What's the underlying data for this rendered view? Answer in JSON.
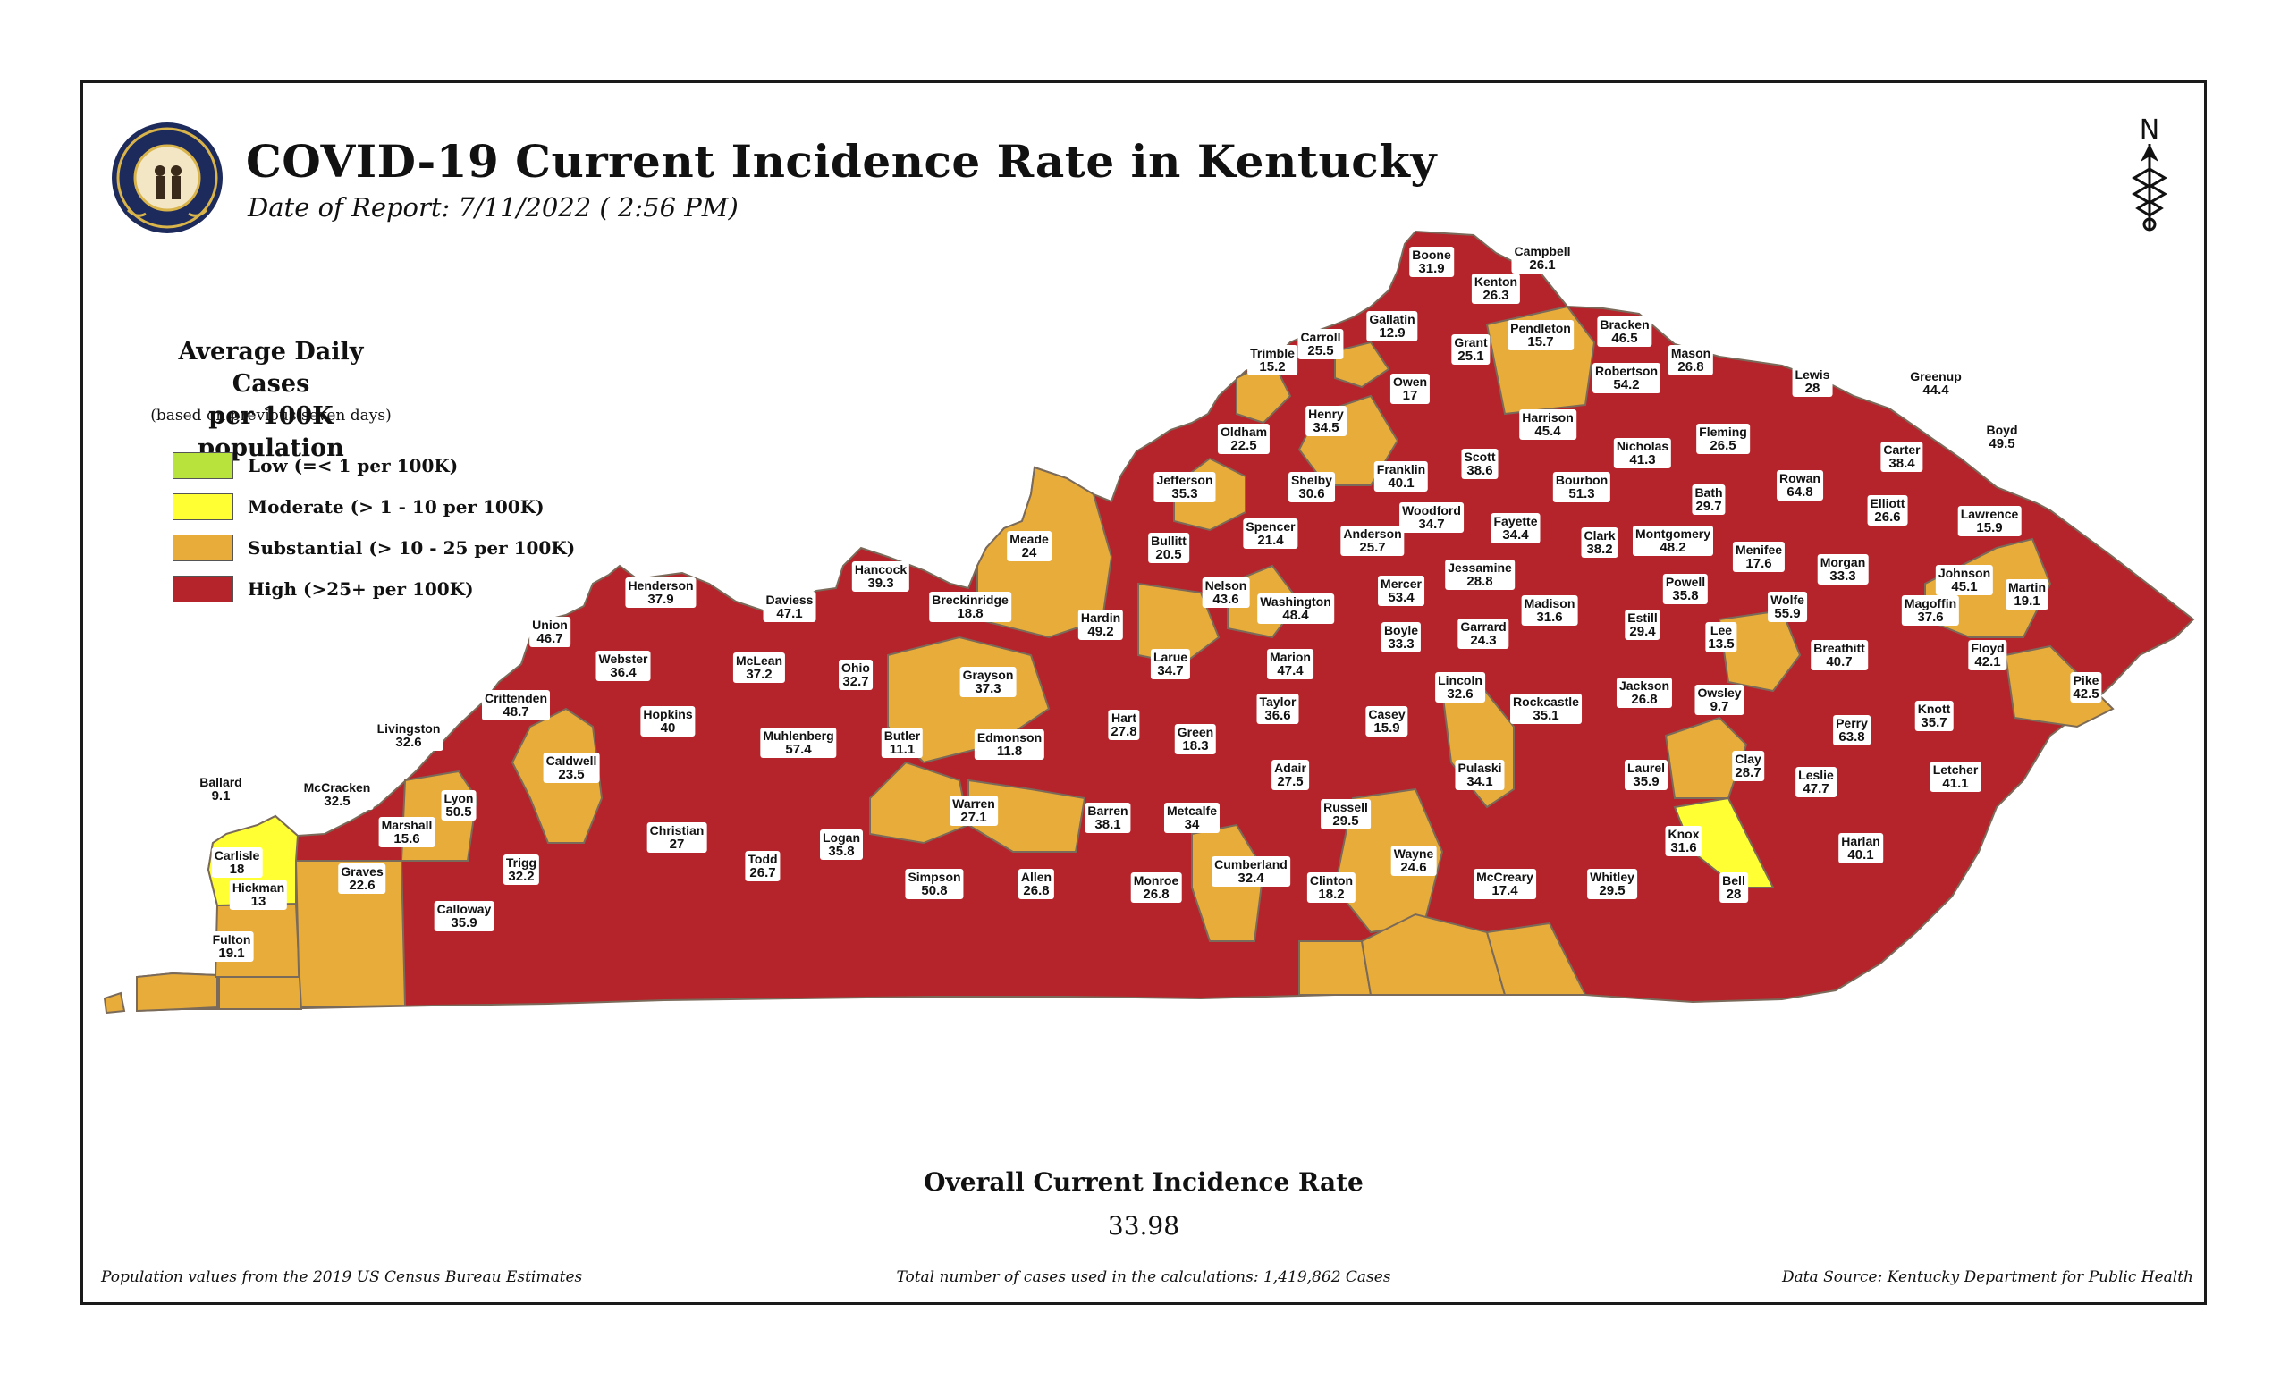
{
  "title": "COVID-19 Current Incidence Rate in Kentucky",
  "subtitle": "Date of Report: 7/11/2022 ( 2:56 PM)",
  "seal_text": "COMMONWEALTH OF KENTUCKY",
  "north_label": "N",
  "legend": {
    "title_line1": "Average Daily Cases",
    "title_line2": "per 100K population",
    "note": "(based on previous seven days)",
    "items": [
      {
        "label": "Low (=< 1 per 100K)",
        "color": "#b8e23c"
      },
      {
        "label": "Moderate (> 1 - 10 per 100K)",
        "color": "#ffff33"
      },
      {
        "label": "Substantial (> 10 - 25 per 100K)",
        "color": "#e8ac3a"
      },
      {
        "label": "High (>25+ per 100K)",
        "color": "#b5242a"
      }
    ]
  },
  "counties": [
    {
      "name": "Boone",
      "value": "31.9",
      "level": "high"
    },
    {
      "name": "Campbell",
      "value": "26.1",
      "level": "high"
    },
    {
      "name": "Kenton",
      "value": "26.3",
      "level": "high"
    },
    {
      "name": "Gallatin",
      "value": "12.9",
      "level": "substantial"
    },
    {
      "name": "Pendleton",
      "value": "15.7",
      "level": "substantial"
    },
    {
      "name": "Bracken",
      "value": "46.5",
      "level": "high"
    },
    {
      "name": "Carroll",
      "value": "25.5",
      "level": "high"
    },
    {
      "name": "Grant",
      "value": "25.1",
      "level": "high"
    },
    {
      "name": "Trimble",
      "value": "15.2",
      "level": "substantial"
    },
    {
      "name": "Mason",
      "value": "26.8",
      "level": "high"
    },
    {
      "name": "Owen",
      "value": "17",
      "level": "substantial"
    },
    {
      "name": "Robertson",
      "value": "54.2",
      "level": "high"
    },
    {
      "name": "Lewis",
      "value": "28",
      "level": "high"
    },
    {
      "name": "Greenup",
      "value": "44.4",
      "level": "high"
    },
    {
      "name": "Henry",
      "value": "34.5",
      "level": "high"
    },
    {
      "name": "Harrison",
      "value": "45.4",
      "level": "high"
    },
    {
      "name": "Oldham",
      "value": "22.5",
      "level": "substantial"
    },
    {
      "name": "Fleming",
      "value": "26.5",
      "level": "high"
    },
    {
      "name": "Boyd",
      "value": "49.5",
      "level": "high"
    },
    {
      "name": "Nicholas",
      "value": "41.3",
      "level": "high"
    },
    {
      "name": "Carter",
      "value": "38.4",
      "level": "high"
    },
    {
      "name": "Scott",
      "value": "38.6",
      "level": "high"
    },
    {
      "name": "Franklin",
      "value": "40.1",
      "level": "high"
    },
    {
      "name": "Shelby",
      "value": "30.6",
      "level": "high"
    },
    {
      "name": "Jefferson",
      "value": "35.3",
      "level": "high"
    },
    {
      "name": "Bourbon",
      "value": "51.3",
      "level": "high"
    },
    {
      "name": "Rowan",
      "value": "64.8",
      "level": "high"
    },
    {
      "name": "Bath",
      "value": "29.7",
      "level": "high"
    },
    {
      "name": "Elliott",
      "value": "26.6",
      "level": "high"
    },
    {
      "name": "Woodford",
      "value": "34.7",
      "level": "high"
    },
    {
      "name": "Lawrence",
      "value": "15.9",
      "level": "substantial"
    },
    {
      "name": "Spencer",
      "value": "21.4",
      "level": "substantial"
    },
    {
      "name": "Fayette",
      "value": "34.4",
      "level": "high"
    },
    {
      "name": "Anderson",
      "value": "25.7",
      "level": "high"
    },
    {
      "name": "Clark",
      "value": "38.2",
      "level": "high"
    },
    {
      "name": "Montgomery",
      "value": "48.2",
      "level": "high"
    },
    {
      "name": "Meade",
      "value": "24",
      "level": "substantial"
    },
    {
      "name": "Bullitt",
      "value": "20.5",
      "level": "substantial"
    },
    {
      "name": "Menifee",
      "value": "17.6",
      "level": "substantial"
    },
    {
      "name": "Morgan",
      "value": "33.3",
      "level": "high"
    },
    {
      "name": "Jessamine",
      "value": "28.8",
      "level": "high"
    },
    {
      "name": "Johnson",
      "value": "45.1",
      "level": "high"
    },
    {
      "name": "Hancock",
      "value": "39.3",
      "level": "high"
    },
    {
      "name": "Powell",
      "value": "35.8",
      "level": "high"
    },
    {
      "name": "Henderson",
      "value": "37.9",
      "level": "high"
    },
    {
      "name": "Mercer",
      "value": "53.4",
      "level": "high"
    },
    {
      "name": "Nelson",
      "value": "43.6",
      "level": "high"
    },
    {
      "name": "Martin",
      "value": "19.1",
      "level": "substantial"
    },
    {
      "name": "Daviess",
      "value": "47.1",
      "level": "high"
    },
    {
      "name": "Breckinridge",
      "value": "18.8",
      "level": "substantial"
    },
    {
      "name": "Washington",
      "value": "48.4",
      "level": "high"
    },
    {
      "name": "Wolfe",
      "value": "55.9",
      "level": "high"
    },
    {
      "name": "Madison",
      "value": "31.6",
      "level": "high"
    },
    {
      "name": "Magoffin",
      "value": "37.6",
      "level": "high"
    },
    {
      "name": "Hardin",
      "value": "49.2",
      "level": "high"
    },
    {
      "name": "Estill",
      "value": "29.4",
      "level": "high"
    },
    {
      "name": "Union",
      "value": "46.7",
      "level": "high"
    },
    {
      "name": "Garrard",
      "value": "24.3",
      "level": "substantial"
    },
    {
      "name": "Boyle",
      "value": "33.3",
      "level": "high"
    },
    {
      "name": "Lee",
      "value": "13.5",
      "level": "substantial"
    },
    {
      "name": "Breathitt",
      "value": "40.7",
      "level": "high"
    },
    {
      "name": "Floyd",
      "value": "42.1",
      "level": "high"
    },
    {
      "name": "Webster",
      "value": "36.4",
      "level": "high"
    },
    {
      "name": "McLean",
      "value": "37.2",
      "level": "high"
    },
    {
      "name": "Larue",
      "value": "34.7",
      "level": "high"
    },
    {
      "name": "Marion",
      "value": "47.4",
      "level": "high"
    },
    {
      "name": "Ohio",
      "value": "32.7",
      "level": "high"
    },
    {
      "name": "Grayson",
      "value": "37.3",
      "level": "high"
    },
    {
      "name": "Lincoln",
      "value": "32.6",
      "level": "high"
    },
    {
      "name": "Jackson",
      "value": "26.8",
      "level": "high"
    },
    {
      "name": "Owsley",
      "value": "9.7",
      "level": "moderate"
    },
    {
      "name": "Pike",
      "value": "42.5",
      "level": "high"
    },
    {
      "name": "Crittenden",
      "value": "48.7",
      "level": "high"
    },
    {
      "name": "Taylor",
      "value": "36.6",
      "level": "high"
    },
    {
      "name": "Casey",
      "value": "15.9",
      "level": "substantial"
    },
    {
      "name": "Rockcastle",
      "value": "35.1",
      "level": "high"
    },
    {
      "name": "Knott",
      "value": "35.7",
      "level": "high"
    },
    {
      "name": "Hopkins",
      "value": "40",
      "level": "high"
    },
    {
      "name": "Hart",
      "value": "27.8",
      "level": "high"
    },
    {
      "name": "Perry",
      "value": "63.8",
      "level": "high"
    },
    {
      "name": "Livingston",
      "value": "32.6",
      "level": "high"
    },
    {
      "name": "Muhlenberg",
      "value": "57.4",
      "level": "high"
    },
    {
      "name": "Butler",
      "value": "11.1",
      "level": "substantial"
    },
    {
      "name": "Edmonson",
      "value": "11.8",
      "level": "substantial"
    },
    {
      "name": "Green",
      "value": "18.3",
      "level": "substantial"
    },
    {
      "name": "Caldwell",
      "value": "23.5",
      "level": "substantial"
    },
    {
      "name": "Clay",
      "value": "28.7",
      "level": "high"
    },
    {
      "name": "Ballard",
      "value": "9.1",
      "level": "moderate"
    },
    {
      "name": "Adair",
      "value": "27.5",
      "level": "high"
    },
    {
      "name": "Pulaski",
      "value": "34.1",
      "level": "high"
    },
    {
      "name": "Laurel",
      "value": "35.9",
      "level": "high"
    },
    {
      "name": "Leslie",
      "value": "47.7",
      "level": "high"
    },
    {
      "name": "Letcher",
      "value": "41.1",
      "level": "high"
    },
    {
      "name": "McCracken",
      "value": "32.5",
      "level": "high"
    },
    {
      "name": "Lyon",
      "value": "50.5",
      "level": "high"
    },
    {
      "name": "Marshall",
      "value": "15.6",
      "level": "substantial"
    },
    {
      "name": "Warren",
      "value": "27.1",
      "level": "high"
    },
    {
      "name": "Russell",
      "value": "29.5",
      "level": "high"
    },
    {
      "name": "Christian",
      "value": "27",
      "level": "high"
    },
    {
      "name": "Barren",
      "value": "38.1",
      "level": "high"
    },
    {
      "name": "Metcalfe",
      "value": "34",
      "level": "high"
    },
    {
      "name": "Logan",
      "value": "35.8",
      "level": "high"
    },
    {
      "name": "Knox",
      "value": "31.6",
      "level": "high"
    },
    {
      "name": "Carlisle",
      "value": "18",
      "level": "substantial"
    },
    {
      "name": "Harlan",
      "value": "40.1",
      "level": "high"
    },
    {
      "name": "Trigg",
      "value": "32.2",
      "level": "high"
    },
    {
      "name": "Todd",
      "value": "26.7",
      "level": "high"
    },
    {
      "name": "Wayne",
      "value": "24.6",
      "level": "substantial"
    },
    {
      "name": "Cumberland",
      "value": "32.4",
      "level": "high"
    },
    {
      "name": "Graves",
      "value": "22.6",
      "level": "substantial"
    },
    {
      "name": "Simpson",
      "value": "50.8",
      "level": "high"
    },
    {
      "name": "Allen",
      "value": "26.8",
      "level": "high"
    },
    {
      "name": "Monroe",
      "value": "26.8",
      "level": "high"
    },
    {
      "name": "Clinton",
      "value": "18.2",
      "level": "substantial"
    },
    {
      "name": "McCreary",
      "value": "17.4",
      "level": "substantial"
    },
    {
      "name": "Whitley",
      "value": "29.5",
      "level": "high"
    },
    {
      "name": "Bell",
      "value": "28",
      "level": "high"
    },
    {
      "name": "Hickman",
      "value": "13",
      "level": "substantial"
    },
    {
      "name": "Calloway",
      "value": "35.9",
      "level": "high"
    },
    {
      "name": "Fulton",
      "value": "19.1",
      "level": "substantial"
    }
  ],
  "overall": {
    "title": "Overall Current Incidence Rate",
    "value": "33.98"
  },
  "footer": {
    "left": "Population values from the 2019 US Census Bureau Estimates",
    "center": "Total number of cases used in the calculations: 1,419,862 Cases",
    "right": "Data Source: Kentucky Department for Public Health"
  },
  "colors": {
    "high": "#b5242a",
    "substantial": "#e8ac3a",
    "moderate": "#ffff33",
    "low": "#b8e23c",
    "border": "#7a6a5a"
  }
}
